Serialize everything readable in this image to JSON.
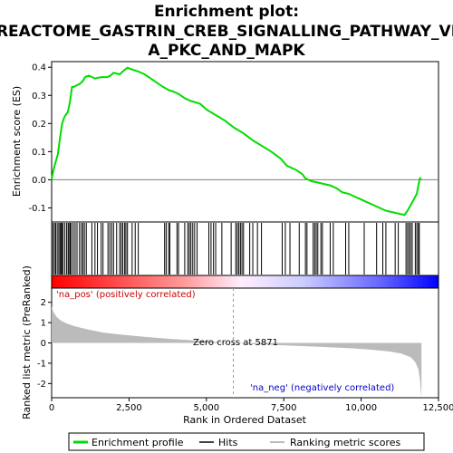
{
  "chart_data": {
    "type": "line",
    "title_lines": [
      "Enrichment plot:",
      "REACTOME_GASTRIN_CREB_SIGNALLING_PATHWAY_VI",
      "A_PKC_AND_MAPK"
    ],
    "ylabel_top": "Enrichment score (ES)",
    "ylabel_bottom": "Ranked list metric (PreRanked)",
    "xlabel": "Rank in Ordered Dataset",
    "xlim": [
      0,
      12500
    ],
    "ylim_top": [
      -0.15,
      0.42
    ],
    "ylim_bottom": [
      -2.7,
      2.7
    ],
    "xticks": [
      0,
      2500,
      5000,
      7500,
      10000,
      12500
    ],
    "xtick_labels": [
      "0",
      "2,500",
      "5,000",
      "7,500",
      "10,000",
      "12,500"
    ],
    "yticks_top": [
      -0.1,
      0.0,
      0.1,
      0.2,
      0.3,
      0.4
    ],
    "ytick_labels_top": [
      "-0.1",
      "0.0",
      "0.1",
      "0.2",
      "0.3",
      "0.4"
    ],
    "yticks_bottom": [
      -2,
      -1,
      0,
      1,
      2
    ],
    "ytick_labels_bottom": [
      "-2",
      "-1",
      "0",
      "1",
      "2"
    ],
    "annotations": {
      "pos_label": "'na_pos' (positively correlated)",
      "neg_label": "'na_neg' (negatively correlated)",
      "zero_cross": "Zero cross at 5871",
      "zero_cross_rank": 5871
    },
    "legend": {
      "items": [
        {
          "label": "Enrichment profile",
          "color": "#00dd00"
        },
        {
          "label": "Hits",
          "color": "#000000"
        },
        {
          "label": "Ranking metric scores",
          "color": "#bbbbbb"
        }
      ]
    },
    "colors": {
      "enrichment": "#00dd00",
      "metric_fill": "#bbbbbb",
      "pos": "#ff0000",
      "neg": "#0000ff",
      "zero_line": "#999999"
    },
    "enrichment_profile": [
      [
        0,
        0.0
      ],
      [
        50,
        0.03
      ],
      [
        120,
        0.06
      ],
      [
        200,
        0.09
      ],
      [
        260,
        0.14
      ],
      [
        300,
        0.17
      ],
      [
        340,
        0.2
      ],
      [
        400,
        0.22
      ],
      [
        450,
        0.23
      ],
      [
        520,
        0.24
      ],
      [
        580,
        0.27
      ],
      [
        620,
        0.3
      ],
      [
        660,
        0.33
      ],
      [
        720,
        0.33
      ],
      [
        800,
        0.335
      ],
      [
        900,
        0.34
      ],
      [
        1000,
        0.35
      ],
      [
        1080,
        0.365
      ],
      [
        1200,
        0.37
      ],
      [
        1400,
        0.36
      ],
      [
        1600,
        0.365
      ],
      [
        1800,
        0.365
      ],
      [
        1900,
        0.37
      ],
      [
        2000,
        0.38
      ],
      [
        2200,
        0.375
      ],
      [
        2350,
        0.39
      ],
      [
        2450,
        0.398
      ],
      [
        2600,
        0.392
      ],
      [
        2800,
        0.385
      ],
      [
        3000,
        0.375
      ],
      [
        3200,
        0.36
      ],
      [
        3400,
        0.345
      ],
      [
        3600,
        0.33
      ],
      [
        3800,
        0.318
      ],
      [
        3900,
        0.315
      ],
      [
        4100,
        0.305
      ],
      [
        4300,
        0.29
      ],
      [
        4500,
        0.28
      ],
      [
        4800,
        0.27
      ],
      [
        5000,
        0.25
      ],
      [
        5300,
        0.23
      ],
      [
        5600,
        0.21
      ],
      [
        5900,
        0.185
      ],
      [
        6200,
        0.165
      ],
      [
        6500,
        0.14
      ],
      [
        6800,
        0.12
      ],
      [
        7100,
        0.1
      ],
      [
        7400,
        0.075
      ],
      [
        7600,
        0.05
      ],
      [
        7900,
        0.035
      ],
      [
        8100,
        0.02
      ],
      [
        8200,
        0.005
      ],
      [
        8400,
        -0.005
      ],
      [
        8600,
        -0.01
      ],
      [
        8800,
        -0.015
      ],
      [
        9000,
        -0.02
      ],
      [
        9200,
        -0.03
      ],
      [
        9400,
        -0.045
      ],
      [
        9600,
        -0.05
      ],
      [
        9800,
        -0.06
      ],
      [
        10000,
        -0.07
      ],
      [
        10200,
        -0.08
      ],
      [
        10400,
        -0.09
      ],
      [
        10600,
        -0.1
      ],
      [
        10800,
        -0.11
      ],
      [
        11000,
        -0.115
      ],
      [
        11200,
        -0.12
      ],
      [
        11400,
        -0.125
      ],
      [
        11500,
        -0.11
      ],
      [
        11600,
        -0.09
      ],
      [
        11700,
        -0.07
      ],
      [
        11800,
        -0.05
      ],
      [
        11850,
        -0.02
      ],
      [
        11900,
        0.005
      ],
      [
        11950,
        0.0
      ]
    ],
    "hit_ranks": [
      40,
      90,
      130,
      180,
      230,
      270,
      300,
      330,
      360,
      420,
      480,
      530,
      560,
      600,
      640,
      700,
      760,
      820,
      900,
      960,
      1010,
      1060,
      1120,
      1300,
      1400,
      1480,
      1600,
      1660,
      1820,
      1880,
      1940,
      2000,
      2100,
      2200,
      2250,
      2300,
      2360,
      2400,
      2450,
      2600,
      2700,
      2800,
      3650,
      3700,
      3780,
      3820,
      4050,
      4100,
      4300,
      4400,
      4450,
      4500,
      4560,
      4620,
      4700,
      5080,
      5150,
      5230,
      5300,
      5500,
      5800,
      5950,
      6000,
      6050,
      6100,
      6150,
      6200,
      6400,
      6500,
      6650,
      6780,
      7450,
      7550,
      7700,
      8000,
      8200,
      8250,
      8450,
      8500,
      8550,
      8600,
      8700,
      8750,
      9000,
      9100,
      9500,
      9600,
      10100,
      10500,
      10700,
      10800,
      11100,
      11200,
      11450,
      11500,
      11550,
      11600,
      11650,
      11750,
      11800,
      11850,
      11880
    ],
    "metric_curve": [
      [
        0,
        1.8
      ],
      [
        50,
        1.55
      ],
      [
        150,
        1.3
      ],
      [
        300,
        1.1
      ],
      [
        500,
        0.95
      ],
      [
        800,
        0.8
      ],
      [
        1200,
        0.65
      ],
      [
        1700,
        0.5
      ],
      [
        2300,
        0.4
      ],
      [
        3000,
        0.3
      ],
      [
        3800,
        0.2
      ],
      [
        4600,
        0.12
      ],
      [
        5300,
        0.05
      ],
      [
        5871,
        0.0
      ],
      [
        6500,
        -0.06
      ],
      [
        7200,
        -0.1
      ],
      [
        8000,
        -0.15
      ],
      [
        8800,
        -0.2
      ],
      [
        9600,
        -0.26
      ],
      [
        10300,
        -0.33
      ],
      [
        10900,
        -0.42
      ],
      [
        11300,
        -0.52
      ],
      [
        11600,
        -0.7
      ],
      [
        11750,
        -0.95
      ],
      [
        11850,
        -1.3
      ],
      [
        11900,
        -1.8
      ],
      [
        11940,
        -2.6
      ],
      [
        11950,
        -2.6
      ]
    ]
  }
}
